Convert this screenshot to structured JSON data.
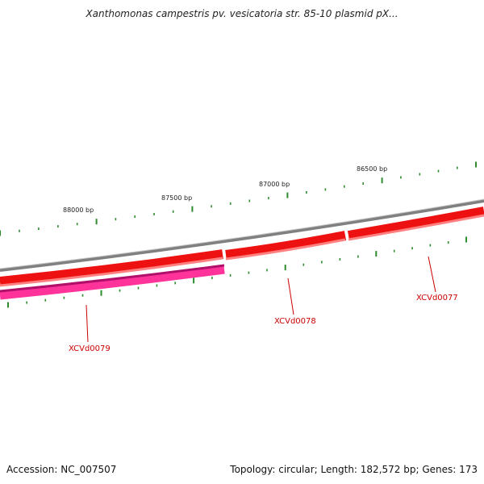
{
  "title": "Xanthomonas campestris pv. vesicatoria str. 85-10 plasmid pX...",
  "footer": {
    "accession": "Accession: NC_007507",
    "summary": "Topology: circular; Length: 182,572 bp; Genes: 173"
  },
  "map": {
    "scale_labels": [
      "88000 bp",
      "87500 bp",
      "87000 bp",
      "86500 bp"
    ],
    "genes": [
      {
        "name": "XCVd0077",
        "label_color": "#cc0000"
      },
      {
        "name": "XCVd0078",
        "label_color": "#cc0000"
      },
      {
        "name": "XCVd0079",
        "label_color": "#cc0000"
      }
    ],
    "colors": {
      "backbone": "#808080",
      "forward_gene": "#ee1111",
      "reverse_gene": "#ff3399",
      "tick": "#2e8b2e",
      "label": "#cc0000"
    }
  }
}
